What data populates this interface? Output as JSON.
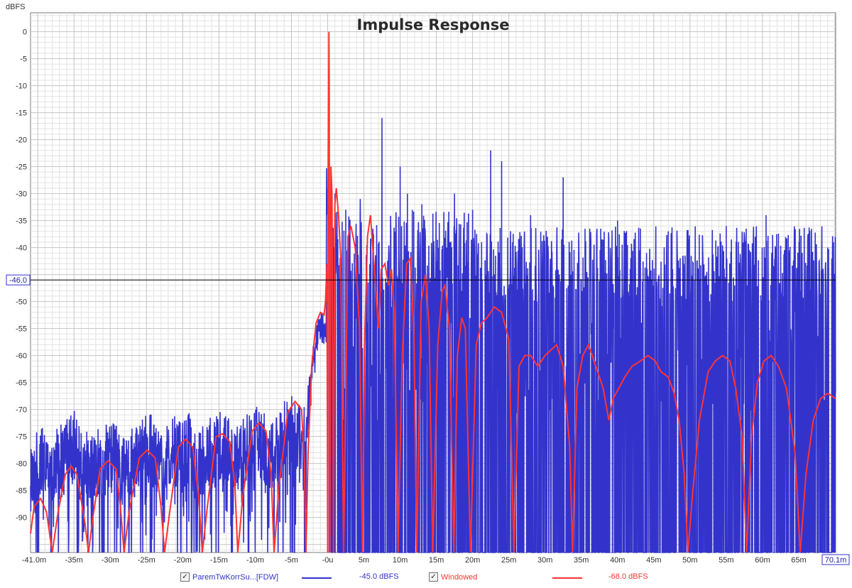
{
  "chart_data": {
    "type": "line",
    "title": "Impulse Response",
    "ylabel": "dBFS",
    "xlabel": "",
    "xlim": [
      -41.0,
      70.1
    ],
    "ylim": [
      -96.5,
      3.5
    ],
    "grid": true,
    "x_ticks": [
      {
        "v": -41,
        "label": "-41.0m"
      },
      {
        "v": -35,
        "label": "-35m"
      },
      {
        "v": -30,
        "label": "-30m"
      },
      {
        "v": -25,
        "label": "-25m"
      },
      {
        "v": -20,
        "label": "-20m"
      },
      {
        "v": -15,
        "label": "-15m"
      },
      {
        "v": -10,
        "label": "-10m"
      },
      {
        "v": -5,
        "label": "-5m"
      },
      {
        "v": 0,
        "label": "-0u"
      },
      {
        "v": 5,
        "label": "5m"
      },
      {
        "v": 10,
        "label": "10m"
      },
      {
        "v": 15,
        "label": "15m"
      },
      {
        "v": 20,
        "label": "20m"
      },
      {
        "v": 25,
        "label": "25m"
      },
      {
        "v": 30,
        "label": "30m"
      },
      {
        "v": 35,
        "label": "35m"
      },
      {
        "v": 40,
        "label": "40m"
      },
      {
        "v": 45,
        "label": "45m"
      },
      {
        "v": 50,
        "label": "50m"
      },
      {
        "v": 55,
        "label": "55m"
      },
      {
        "v": 60,
        "label": "60m"
      },
      {
        "v": 65,
        "label": "65m"
      },
      {
        "v": 70.1,
        "label": "70.1m"
      }
    ],
    "y_ticks": [
      0,
      -5,
      -10,
      -15,
      -20,
      -25,
      -30,
      -35,
      -40,
      -45,
      -50,
      -55,
      -60,
      -65,
      -70,
      -75,
      -80,
      -85,
      -90
    ],
    "cursor": {
      "y": -46.0,
      "label": "-46.0"
    },
    "series": [
      {
        "name": "ParemTwKorrSu...[FDW]",
        "color": "#3333cc",
        "envelope": [
          [
            -41,
            -75
          ],
          [
            -39,
            -73
          ],
          [
            -37,
            -73
          ],
          [
            -35,
            -70
          ],
          [
            -34,
            -74
          ],
          [
            -33,
            -74
          ],
          [
            -31,
            -73
          ],
          [
            -29,
            -72
          ],
          [
            -28,
            -75
          ],
          [
            -26,
            -72
          ],
          [
            -24,
            -70
          ],
          [
            -23,
            -74
          ],
          [
            -21,
            -71
          ],
          [
            -19,
            -70
          ],
          [
            -18,
            -74
          ],
          [
            -16,
            -71
          ],
          [
            -14,
            -70
          ],
          [
            -13,
            -74
          ],
          [
            -11,
            -70
          ],
          [
            -9,
            -69
          ],
          [
            -8,
            -72
          ],
          [
            -6,
            -68
          ],
          [
            -4,
            -67
          ],
          [
            -3,
            -70
          ],
          [
            -2,
            -56
          ],
          [
            -1,
            -52
          ],
          [
            -0.5,
            -52
          ]
        ],
        "peaks": [
          [
            0.2,
            -25
          ],
          [
            0.5,
            -27
          ],
          [
            1.0,
            -30
          ],
          [
            2.5,
            -33
          ],
          [
            4.5,
            -31
          ],
          [
            7.5,
            -16
          ],
          [
            10.0,
            -25
          ],
          [
            11.0,
            -30
          ],
          [
            13.0,
            -32
          ],
          [
            17.5,
            -30
          ],
          [
            22.5,
            -22
          ],
          [
            24.0,
            -24
          ],
          [
            28.0,
            -34
          ],
          [
            32.5,
            -27
          ],
          [
            40.0,
            -35
          ],
          [
            47.0,
            -37
          ],
          [
            55.0,
            -36
          ],
          [
            59.0,
            -38
          ],
          [
            60.5,
            -34
          ],
          [
            69.0,
            -40
          ]
        ]
      },
      {
        "name": "Windowed",
        "color": "#ff3333",
        "points": [
          [
            -41,
            -93
          ],
          [
            -40.5,
            -88
          ],
          [
            -39.6,
            -86.5
          ],
          [
            -38.8,
            -89
          ],
          [
            -38,
            -96.5
          ],
          [
            -37.2,
            -89
          ],
          [
            -36.2,
            -82
          ],
          [
            -35.4,
            -80.5
          ],
          [
            -34.6,
            -82
          ],
          [
            -33.5,
            -91
          ],
          [
            -33.0,
            -96.5
          ],
          [
            -32.4,
            -90
          ],
          [
            -31.4,
            -81
          ],
          [
            -30.3,
            -79.5
          ],
          [
            -29.2,
            -81
          ],
          [
            -28.6,
            -88
          ],
          [
            -28.1,
            -96.5
          ],
          [
            -27.4,
            -89
          ],
          [
            -26.0,
            -79
          ],
          [
            -24.9,
            -77.5
          ],
          [
            -23.8,
            -79
          ],
          [
            -23.0,
            -88
          ],
          [
            -22.5,
            -96.5
          ],
          [
            -21.8,
            -89
          ],
          [
            -20.6,
            -77
          ],
          [
            -19.6,
            -75.5
          ],
          [
            -18.6,
            -77
          ],
          [
            -17.8,
            -86
          ],
          [
            -17.3,
            -96.5
          ],
          [
            -16.6,
            -88
          ],
          [
            -15.4,
            -75
          ],
          [
            -14.5,
            -74.5
          ],
          [
            -13.5,
            -76
          ],
          [
            -12.8,
            -84
          ],
          [
            -12.4,
            -96.5
          ],
          [
            -11.7,
            -86
          ],
          [
            -10.4,
            -74
          ],
          [
            -9.5,
            -72.5
          ],
          [
            -8.5,
            -74
          ],
          [
            -7.8,
            -82
          ],
          [
            -7.4,
            -96.5
          ],
          [
            -6.7,
            -84
          ],
          [
            -5.5,
            -70.5
          ],
          [
            -4.5,
            -68.5
          ],
          [
            -3.6,
            -70
          ],
          [
            -3.2,
            -80
          ],
          [
            -3.0,
            -96.5
          ],
          [
            -2.7,
            -78
          ],
          [
            -2.2,
            -62
          ],
          [
            -1.6,
            -54
          ],
          [
            -1.0,
            -52
          ],
          [
            -0.5,
            -52.5
          ],
          [
            -0.3,
            -50
          ],
          [
            -0.1,
            -43
          ],
          [
            0.0,
            -96.5
          ],
          [
            0.05,
            -30
          ],
          [
            0.12,
            -18
          ],
          [
            0.18,
            0
          ],
          [
            0.22,
            -10
          ],
          [
            0.3,
            -96.5
          ],
          [
            0.45,
            -25
          ],
          [
            0.6,
            -30
          ],
          [
            0.8,
            -96.5
          ],
          [
            1.0,
            -32
          ],
          [
            1.2,
            -29
          ],
          [
            1.5,
            -34
          ],
          [
            1.8,
            -42
          ],
          [
            2.2,
            -96.5
          ],
          [
            2.8,
            -38
          ],
          [
            3.2,
            -36
          ],
          [
            3.8,
            -40
          ],
          [
            4.4,
            -55
          ],
          [
            4.8,
            -96.5
          ],
          [
            5.1,
            -58
          ],
          [
            5.5,
            -38
          ],
          [
            5.9,
            -34
          ],
          [
            6.4,
            -43
          ],
          [
            7.0,
            -55
          ],
          [
            7.4,
            -44
          ],
          [
            7.9,
            -43
          ],
          [
            8.4,
            -47
          ],
          [
            8.8,
            -44
          ],
          [
            9.2,
            -52
          ],
          [
            9.7,
            -96.5
          ],
          [
            10.3,
            -60
          ],
          [
            10.9,
            -43
          ],
          [
            11.4,
            -42
          ],
          [
            11.9,
            -56
          ],
          [
            12.3,
            -96.5
          ],
          [
            12.9,
            -50
          ],
          [
            13.5,
            -45
          ],
          [
            14.0,
            -55
          ],
          [
            14.5,
            -96.5
          ],
          [
            15.2,
            -58
          ],
          [
            15.8,
            -48
          ],
          [
            16.2,
            -47
          ],
          [
            16.8,
            -55
          ],
          [
            17.4,
            -96.5
          ],
          [
            17.9,
            -60
          ],
          [
            18.5,
            -53
          ],
          [
            19.0,
            -55
          ],
          [
            19.7,
            -96.5
          ],
          [
            20.5,
            -58
          ],
          [
            21.2,
            -54
          ],
          [
            22.0,
            -53
          ],
          [
            23.0,
            -51
          ],
          [
            24.0,
            -52
          ],
          [
            25.0,
            -57
          ],
          [
            25.7,
            -96.5
          ],
          [
            26.4,
            -62
          ],
          [
            27.2,
            -60
          ],
          [
            28.0,
            -60
          ],
          [
            29.0,
            -62
          ],
          [
            30.0,
            -60
          ],
          [
            30.8,
            -59
          ],
          [
            31.6,
            -58
          ],
          [
            32.5,
            -62
          ],
          [
            33.4,
            -77
          ],
          [
            33.8,
            -96.5
          ],
          [
            34.4,
            -66
          ],
          [
            35.2,
            -60
          ],
          [
            36.0,
            -58
          ],
          [
            37.0,
            -62
          ],
          [
            38.0,
            -66
          ],
          [
            38.8,
            -72
          ],
          [
            39.4,
            -68
          ],
          [
            40.2,
            -66
          ],
          [
            41.0,
            -64
          ],
          [
            42.0,
            -62
          ],
          [
            43.2,
            -61
          ],
          [
            44.2,
            -60
          ],
          [
            45.2,
            -61
          ],
          [
            46.0,
            -63
          ],
          [
            47.0,
            -64
          ],
          [
            47.8,
            -67
          ],
          [
            48.5,
            -72
          ],
          [
            49.2,
            -82
          ],
          [
            49.7,
            -96.5
          ],
          [
            50.4,
            -85
          ],
          [
            51.3,
            -72
          ],
          [
            52.5,
            -63
          ],
          [
            53.5,
            -61
          ],
          [
            54.5,
            -60
          ],
          [
            55.5,
            -61
          ],
          [
            56.3,
            -66
          ],
          [
            57.2,
            -75
          ],
          [
            57.8,
            -96.5
          ],
          [
            58.5,
            -75
          ],
          [
            59.3,
            -65
          ],
          [
            60.2,
            -61
          ],
          [
            61.2,
            -60
          ],
          [
            62.2,
            -62
          ],
          [
            63.3,
            -66
          ],
          [
            64.5,
            -78
          ],
          [
            65.2,
            -96.5
          ],
          [
            66.0,
            -82
          ],
          [
            67.0,
            -72
          ],
          [
            68.0,
            -68
          ],
          [
            69.0,
            -67
          ],
          [
            70.1,
            -68
          ]
        ]
      }
    ]
  },
  "legend": {
    "items": [
      {
        "checked": "✓",
        "label": "ParemTwKorrSu...[FDW]",
        "value": "-45.0 dBFS",
        "color": "#3333cc"
      },
      {
        "checked": "✓",
        "label": "Windowed",
        "value": "-68.0 dBFS",
        "color": "#ff3333"
      }
    ]
  }
}
